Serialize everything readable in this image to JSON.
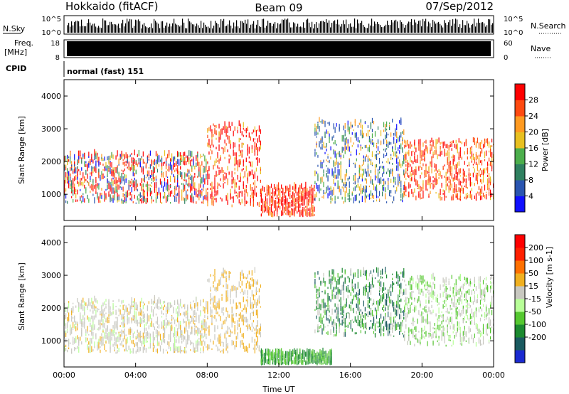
{
  "header": {
    "station": "Hokkaido (fitACF)",
    "beam": "Beam 09",
    "date": "07/Sep/2012"
  },
  "side_labels": {
    "n_sky": "N.Sky",
    "n_search": "N.Search",
    "freq": "Freq.",
    "mhz": "[MHz]",
    "nave": "Nave",
    "cpid": "CPID",
    "cpid_value": "normal (fast) 151"
  },
  "noise_axis": {
    "left_top": "10^5",
    "left_bottom": "10^0",
    "right_top": "10^5",
    "right_bottom": "10^0"
  },
  "freq_axis": {
    "left_top": "18",
    "left_bottom": "8",
    "right_top": "60",
    "right_bottom": "0"
  },
  "chart_data": [
    {
      "type": "heatmap",
      "name": "power",
      "ylabel": "Slant Range [km]",
      "xlabel": "",
      "x_ticks": [
        "00:00",
        "04:00",
        "08:00",
        "12:00",
        "16:00",
        "20:00",
        "00:00"
      ],
      "xlim_hours": [
        0,
        24
      ],
      "ylim": [
        200,
        4500
      ],
      "y_ticks": [
        1000,
        2000,
        3000,
        4000
      ],
      "colorbar": {
        "label": "Power [dB]",
        "ticks": [
          "4",
          "8",
          "12",
          "16",
          "20",
          "24",
          "28"
        ],
        "colors": [
          "#1010ff",
          "#2a55b0",
          "#2f8060",
          "#4cae4c",
          "#e8c020",
          "#ff9a20",
          "#ff4a10",
          "#ff0000"
        ]
      }
    },
    {
      "type": "heatmap",
      "name": "velocity",
      "ylabel": "Slant Range [km]",
      "xlabel": "Time UT",
      "x_ticks": [
        "00:00",
        "04:00",
        "08:00",
        "12:00",
        "16:00",
        "20:00",
        "00:00"
      ],
      "xlim_hours": [
        0,
        24
      ],
      "ylim": [
        200,
        4500
      ],
      "y_ticks": [
        1000,
        2000,
        3000,
        4000
      ],
      "colorbar": {
        "label": "Velocity [m s-1]",
        "ticks": [
          "200",
          "100",
          "50",
          "15",
          "-15",
          "-50",
          "-100",
          "-200"
        ],
        "colors": [
          "#1a2ad0",
          "#1a5a60",
          "#1c8a30",
          "#55c830",
          "#b8ff98",
          "#c8c8c0",
          "#f0b020",
          "#ff7000",
          "#ff2000",
          "#ff0000"
        ]
      }
    }
  ]
}
